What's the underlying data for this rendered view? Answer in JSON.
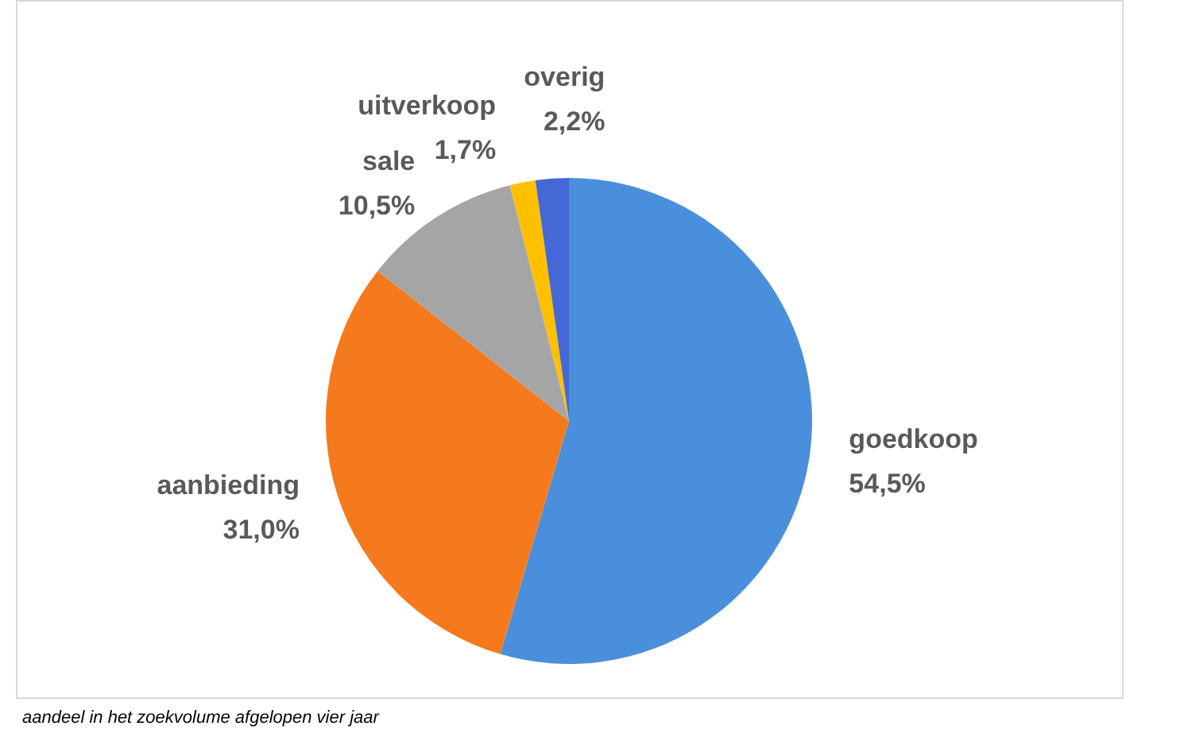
{
  "chart_data": {
    "type": "pie",
    "categories": [
      "goedkoop",
      "aanbieding",
      "sale",
      "uitverkoop",
      "overig"
    ],
    "values": [
      54.5,
      31.0,
      10.5,
      1.7,
      2.2
    ],
    "value_labels": [
      "54,5%",
      "31,0%",
      "10,5%",
      "1,7%",
      "2,2%"
    ],
    "colors": [
      "#4a8fdb",
      "#f57a1e",
      "#a5a5a5",
      "#ffc000",
      "#4468d6"
    ],
    "legend": false,
    "annotations": [
      "aandeel in het zoekvolume afgelopen vier jaar"
    ]
  }
}
